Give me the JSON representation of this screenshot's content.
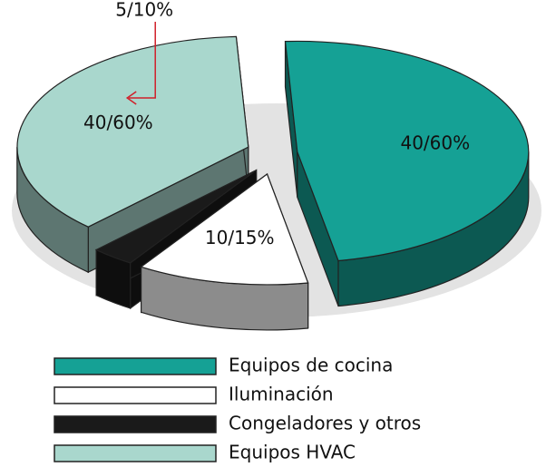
{
  "chart_data": {
    "type": "pie",
    "categories": [
      "Equipos de cocina",
      "Iluminación",
      "Congeladores y otros",
      "Equipos HVAC"
    ],
    "values": [
      48,
      12,
      3,
      37
    ],
    "value_labels": [
      "40/60%",
      "10/15%",
      "5/10%",
      "40/60%"
    ],
    "colors": [
      "#15a195",
      "#ffffff",
      "#1a1a1a",
      "#a9d7cd"
    ]
  }
}
